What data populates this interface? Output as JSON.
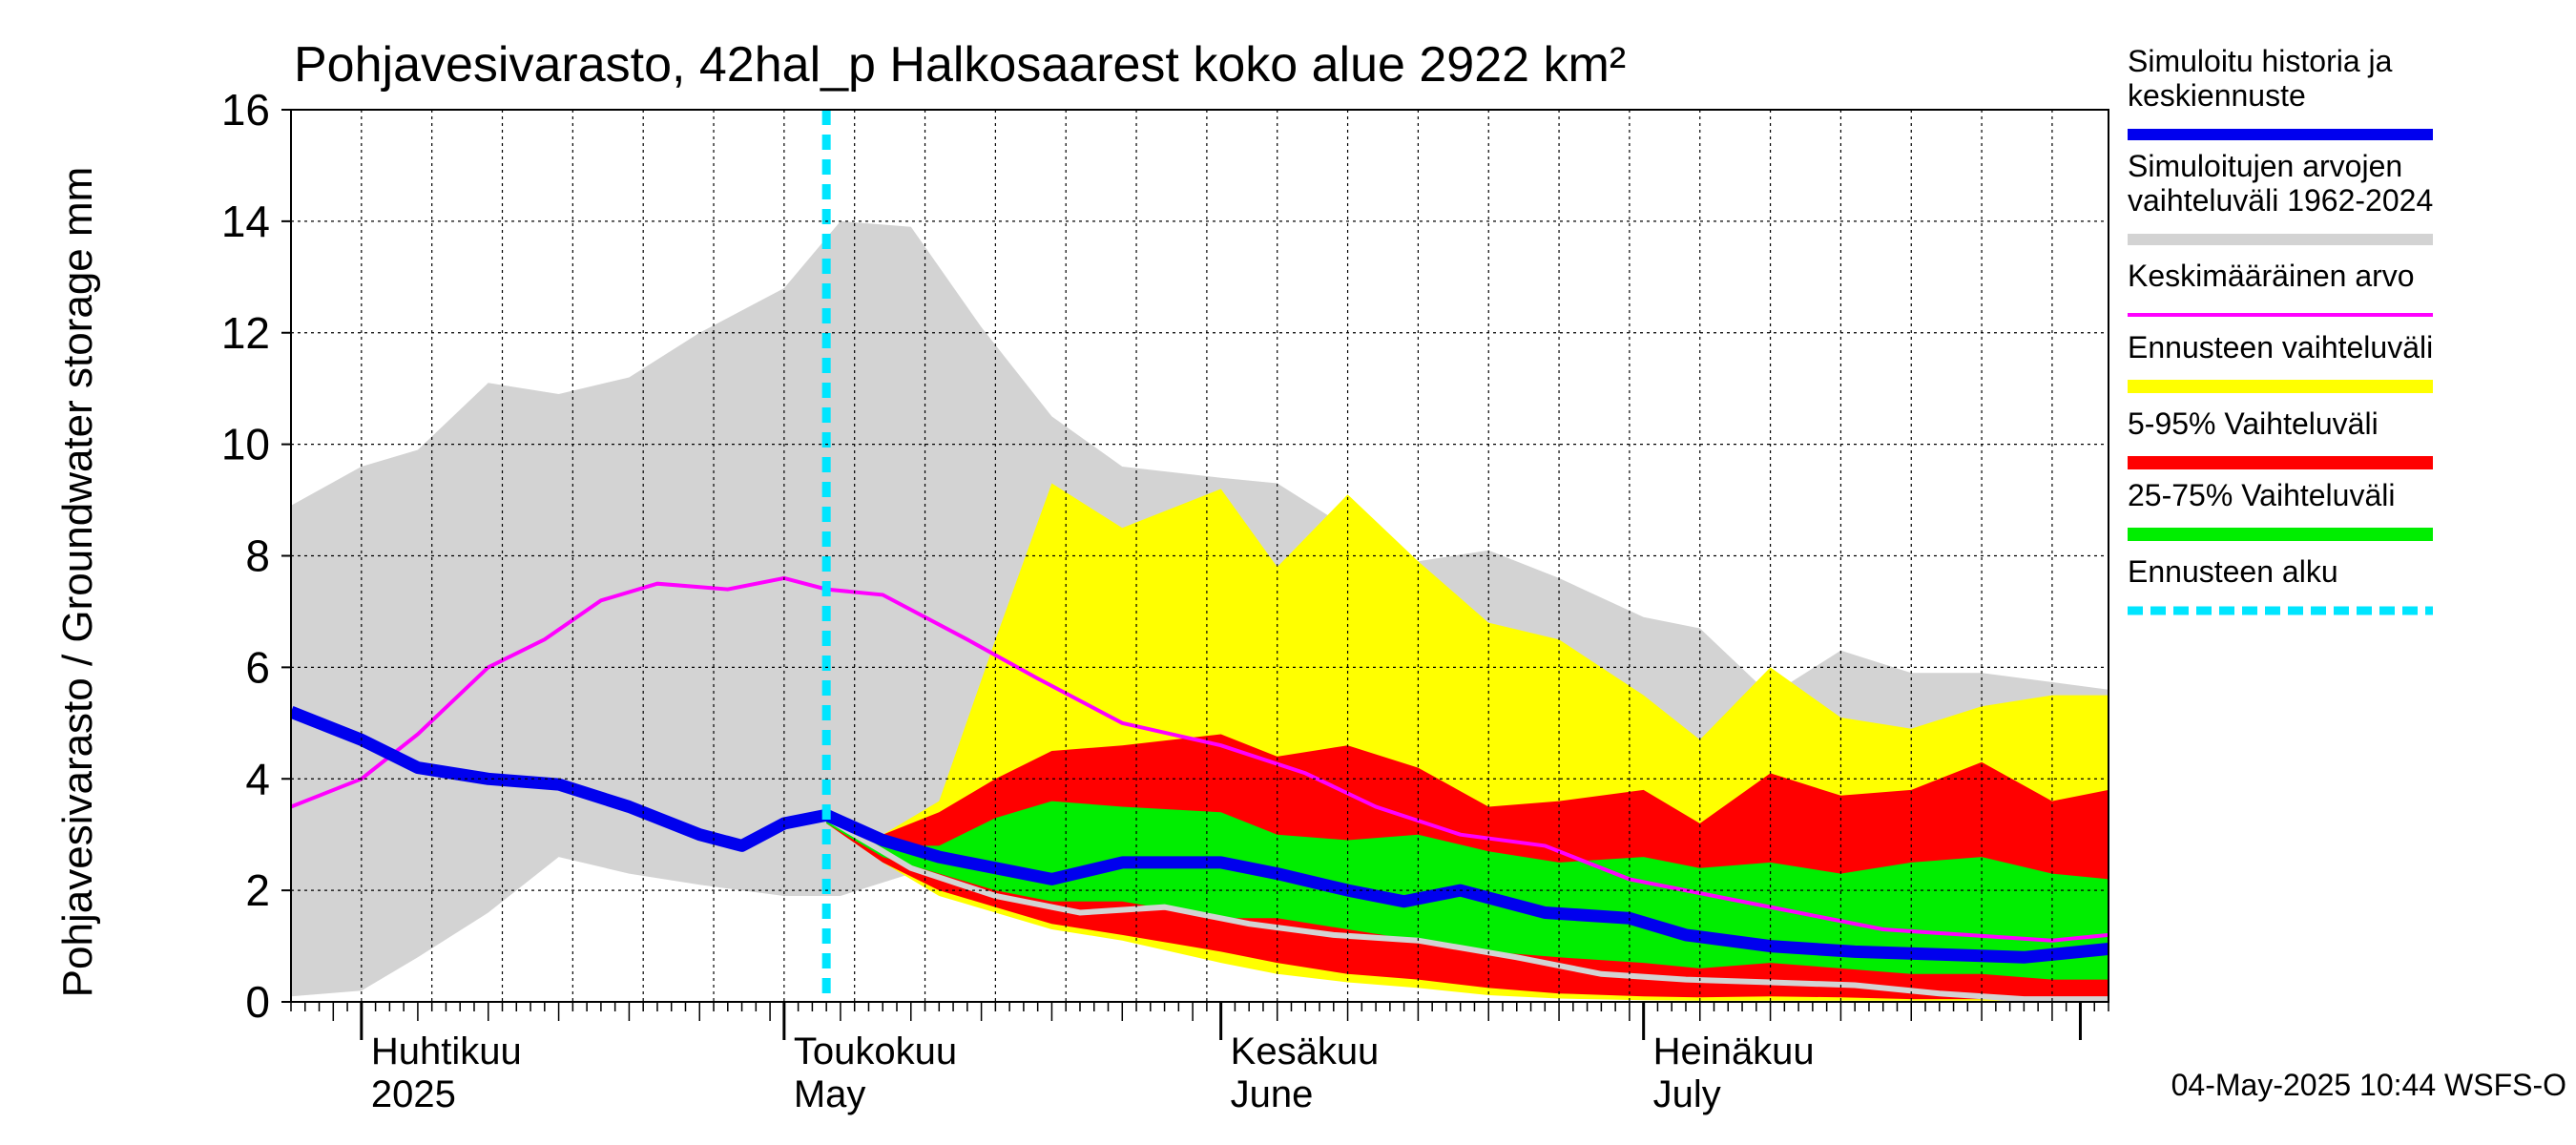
{
  "chart_data": {
    "type": "area",
    "title": "Pohjavesivarasto, 42hal_p Halkosaarest koko alue 2922 km²",
    "ylabel": "Pohjavesivarasto / Groundwater storage   mm",
    "ylim": [
      0,
      16
    ],
    "yticks": [
      0,
      2,
      4,
      6,
      8,
      10,
      12,
      14,
      16
    ],
    "x_start": "2025-03-27",
    "x_end": "2025-08-03",
    "forecast_start": "2025-05-04",
    "month_labels": [
      {
        "fi": "Huhtikuu",
        "en": "2025",
        "date": "2025-04-01"
      },
      {
        "fi": "Toukokuu",
        "en": "May",
        "date": "2025-05-01"
      },
      {
        "fi": "Kesäkuu",
        "en": "June",
        "date": "2025-06-01"
      },
      {
        "fi": "Heinäkuu",
        "en": "July",
        "date": "2025-07-01"
      }
    ],
    "legend": [
      {
        "label": "Simuloitu historia ja keskiennuste",
        "color": "#0000ee"
      },
      {
        "label": "Simuloitujen arvojen vaihteluväli 1962-2024",
        "color": "#d3d3d3"
      },
      {
        "label": "Keskimääräinen arvo",
        "color": "#ff00ff"
      },
      {
        "label": "Ennusteen vaihteluväli",
        "color": "#ffff00"
      },
      {
        "label": "5-95% Vaihteluväli",
        "color": "#ff0000"
      },
      {
        "label": "25-75% Vaihteluväli",
        "color": "#00ee00"
      },
      {
        "label": "Ennusteen alku",
        "color": "#00e5ff"
      }
    ],
    "hist_range": {
      "dates": [
        "2025-03-27",
        "2025-04-01",
        "2025-04-05",
        "2025-04-10",
        "2025-04-15",
        "2025-04-20",
        "2025-04-25",
        "2025-05-01",
        "2025-05-05",
        "2025-05-10",
        "2025-05-15",
        "2025-05-20",
        "2025-05-25",
        "2025-06-01",
        "2025-06-05",
        "2025-06-10",
        "2025-06-15",
        "2025-06-20",
        "2025-06-25",
        "2025-07-01",
        "2025-07-05",
        "2025-07-10",
        "2025-07-15",
        "2025-07-20",
        "2025-07-25",
        "2025-08-03"
      ],
      "upper": [
        8.9,
        9.6,
        9.9,
        11.1,
        10.9,
        11.2,
        12.0,
        12.8,
        14.0,
        13.9,
        12.1,
        10.5,
        9.6,
        9.4,
        9.3,
        8.5,
        7.9,
        8.1,
        7.6,
        6.9,
        6.7,
        5.5,
        6.3,
        5.9,
        5.9,
        5.6
      ],
      "lower": [
        0.1,
        0.2,
        0.8,
        1.6,
        2.6,
        2.3,
        2.1,
        1.9,
        1.9,
        2.3,
        2.2,
        1.8,
        1.6,
        1.4,
        1.1,
        0.9,
        0.7,
        0.5,
        0.3,
        0.15,
        0.1,
        0.05,
        0.05,
        0.02,
        0.02,
        0.02
      ]
    },
    "mean": {
      "dates": [
        "2025-03-27",
        "2025-04-01",
        "2025-04-05",
        "2025-04-10",
        "2025-04-14",
        "2025-04-18",
        "2025-04-22",
        "2025-04-27",
        "2025-05-01",
        "2025-05-04",
        "2025-05-08",
        "2025-05-14",
        "2025-05-19",
        "2025-05-25",
        "2025-06-01",
        "2025-06-07",
        "2025-06-12",
        "2025-06-18",
        "2025-06-24",
        "2025-06-30",
        "2025-07-06",
        "2025-07-12",
        "2025-07-18",
        "2025-07-24",
        "2025-07-30",
        "2025-08-03"
      ],
      "values": [
        3.5,
        4.0,
        4.8,
        6.0,
        6.5,
        7.2,
        7.5,
        7.4,
        7.6,
        7.4,
        7.3,
        6.5,
        5.8,
        5.0,
        4.6,
        4.1,
        3.5,
        3.0,
        2.8,
        2.2,
        1.9,
        1.6,
        1.3,
        1.2,
        1.1,
        1.2
      ]
    },
    "forecast_bands": {
      "dates": [
        "2025-05-04",
        "2025-05-08",
        "2025-05-12",
        "2025-05-16",
        "2025-05-20",
        "2025-05-25",
        "2025-06-01",
        "2025-06-05",
        "2025-06-10",
        "2025-06-15",
        "2025-06-20",
        "2025-06-25",
        "2025-07-01",
        "2025-07-05",
        "2025-07-10",
        "2025-07-15",
        "2025-07-20",
        "2025-07-25",
        "2025-07-30",
        "2025-08-03"
      ],
      "max": [
        3.4,
        3.0,
        3.6,
        6.5,
        9.3,
        8.5,
        9.2,
        7.8,
        9.1,
        7.9,
        6.8,
        6.5,
        5.5,
        4.7,
        6.0,
        5.1,
        4.9,
        5.3,
        5.5,
        5.5
      ],
      "p95": [
        3.4,
        3.0,
        3.4,
        4.0,
        4.5,
        4.6,
        4.8,
        4.4,
        4.6,
        4.2,
        3.5,
        3.6,
        3.8,
        3.2,
        4.1,
        3.7,
        3.8,
        4.3,
        3.6,
        3.8
      ],
      "p75": [
        3.3,
        2.8,
        2.8,
        3.3,
        3.6,
        3.5,
        3.4,
        3.0,
        2.9,
        3.0,
        2.7,
        2.5,
        2.6,
        2.4,
        2.5,
        2.3,
        2.5,
        2.6,
        2.3,
        2.2
      ],
      "p25": [
        3.2,
        2.6,
        2.3,
        2.0,
        1.8,
        1.8,
        1.5,
        1.5,
        1.3,
        1.1,
        0.9,
        0.8,
        0.7,
        0.6,
        0.7,
        0.6,
        0.5,
        0.5,
        0.4,
        0.4
      ],
      "p5": [
        3.2,
        2.5,
        2.0,
        1.7,
        1.4,
        1.2,
        0.9,
        0.7,
        0.5,
        0.4,
        0.25,
        0.15,
        0.1,
        0.08,
        0.1,
        0.08,
        0.05,
        0.05,
        0.05,
        0.05
      ],
      "min": [
        3.2,
        2.5,
        1.9,
        1.6,
        1.3,
        1.1,
        0.7,
        0.5,
        0.35,
        0.25,
        0.12,
        0.06,
        0.03,
        0.02,
        0.02,
        0.02,
        0.02,
        0.02,
        0.02,
        0.02
      ]
    },
    "median_line": {
      "dates": [
        "2025-03-27",
        "2025-04-01",
        "2025-04-05",
        "2025-04-10",
        "2025-04-15",
        "2025-04-20",
        "2025-04-25",
        "2025-04-28",
        "2025-05-01",
        "2025-05-04",
        "2025-05-08",
        "2025-05-12",
        "2025-05-16",
        "2025-05-20",
        "2025-05-25",
        "2025-06-01",
        "2025-06-05",
        "2025-06-10",
        "2025-06-14",
        "2025-06-18",
        "2025-06-24",
        "2025-06-30",
        "2025-07-04",
        "2025-07-10",
        "2025-07-16",
        "2025-07-22",
        "2025-07-28",
        "2025-08-03"
      ],
      "values": [
        5.2,
        4.7,
        4.2,
        4.0,
        3.9,
        3.5,
        3.0,
        2.8,
        3.2,
        3.35,
        2.9,
        2.6,
        2.4,
        2.2,
        2.5,
        2.5,
        2.3,
        2.0,
        1.8,
        2.0,
        1.6,
        1.5,
        1.2,
        1.0,
        0.9,
        0.85,
        0.8,
        0.95
      ]
    },
    "grey_forecast_line": {
      "dates": [
        "2025-05-04",
        "2025-05-10",
        "2025-05-16",
        "2025-05-22",
        "2025-05-28",
        "2025-06-03",
        "2025-06-09",
        "2025-06-15",
        "2025-06-22",
        "2025-06-28",
        "2025-07-04",
        "2025-07-10",
        "2025-07-16",
        "2025-07-22",
        "2025-07-28",
        "2025-08-03"
      ],
      "values": [
        3.3,
        2.4,
        1.9,
        1.6,
        1.7,
        1.4,
        1.2,
        1.1,
        0.8,
        0.5,
        0.4,
        0.35,
        0.3,
        0.15,
        0.05,
        0.05
      ]
    }
  },
  "footer": "04-May-2025 10:44 WSFS-O"
}
